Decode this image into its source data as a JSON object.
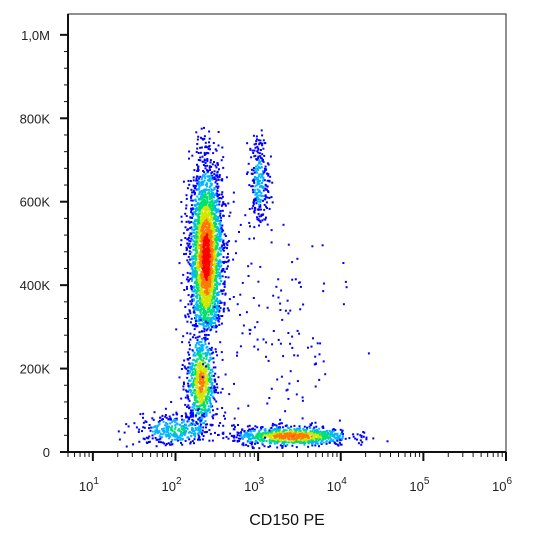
{
  "chart_data": {
    "type": "scatter",
    "subtype": "flow cytometry density dot plot",
    "title": "",
    "xlabel": "CD150 PE",
    "ylabel": "",
    "x_scale": "log",
    "xlim": [
      5,
      1000000
    ],
    "ylim": [
      0,
      1050000
    ],
    "x_ticks": [
      {
        "value": 10,
        "base": "10",
        "exp": "1"
      },
      {
        "value": 100,
        "base": "10",
        "exp": "2"
      },
      {
        "value": 1000,
        "base": "10",
        "exp": "3"
      },
      {
        "value": 10000,
        "base": "10",
        "exp": "4"
      },
      {
        "value": 100000,
        "base": "10",
        "exp": "5"
      },
      {
        "value": 1000000,
        "base": "10",
        "exp": "6"
      }
    ],
    "y_ticks": [
      {
        "value": 0,
        "label": "0"
      },
      {
        "value": 200000,
        "label": "200K"
      },
      {
        "value": 400000,
        "label": "400K"
      },
      {
        "value": 600000,
        "label": "600K"
      },
      {
        "value": 800000,
        "label": "800K"
      },
      {
        "value": 1000000,
        "label": "1,0M"
      }
    ],
    "density_colors": [
      "#0000ff",
      "#00b4ff",
      "#00e070",
      "#d2e600",
      "#ff7800",
      "#ff0000"
    ],
    "populations": [
      {
        "x_center": 230,
        "x_log_sd": 0.1,
        "y_center": 470000,
        "y_sd": 110000,
        "y_range": [
          300000,
          780000
        ],
        "weight": 0.55
      },
      {
        "x_center": 200,
        "x_log_sd": 0.09,
        "y_center": 170000,
        "y_sd": 60000,
        "y_range": [
          60000,
          320000
        ],
        "weight": 0.14
      },
      {
        "x_center": 1000,
        "x_log_sd": 0.06,
        "y_center": 650000,
        "y_sd": 60000,
        "y_range": [
          540000,
          780000
        ],
        "weight": 0.05
      },
      {
        "x_center": 2500,
        "x_log_sd": 0.35,
        "y_center": 40000,
        "y_sd": 12000,
        "y_range": [
          10000,
          90000
        ],
        "weight": 0.16
      },
      {
        "x_center": 100,
        "x_log_sd": 0.25,
        "y_center": 55000,
        "y_sd": 20000,
        "y_range": [
          15000,
          110000
        ],
        "weight": 0.07
      },
      {
        "x_center": 1500,
        "x_log_sd": 0.45,
        "y_center": 280000,
        "y_sd": 170000,
        "y_range": [
          40000,
          650000
        ],
        "weight": 0.03
      }
    ]
  }
}
